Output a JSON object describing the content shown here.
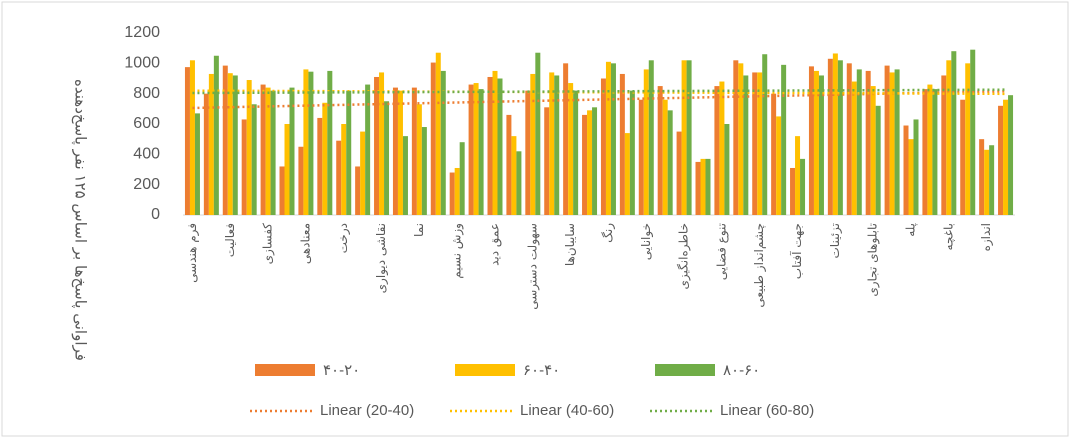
{
  "chart_data": {
    "type": "bar",
    "y_label": "فراوانی پاسخ‌ها بر اساس ۱۲۵ نفر پاسخ‌دهنده",
    "categories": [
      "فرم هندسی",
      null,
      "فعالیت",
      null,
      "کفسازی",
      null,
      "معنادهی",
      null,
      "درخت",
      null,
      "نقاشی دیواری",
      null,
      "نما",
      null,
      "وزش نسیم",
      null,
      "عمق دید",
      null,
      "سهولت دسترسی",
      null,
      "سایبان‌ها",
      null,
      "رنگ",
      null,
      "خوانایی",
      null,
      "خاطره‌انگیزی",
      null,
      "تنوع فضایی",
      null,
      "چشم‌انداز طبیعی",
      null,
      "جهت آفتاب",
      null,
      "تزئینات",
      null,
      "تابلوهای تجاری",
      null,
      "پله",
      null,
      "باغچه",
      null,
      "اندازه",
      null
    ],
    "series": [
      {
        "name": "۴۰-۲۰",
        "color": "#ED7D31",
        "trend_name": "Linear (20-40)",
        "values": [
          975,
          800,
          985,
          630,
          860,
          320,
          450,
          640,
          490,
          320,
          910,
          840,
          840,
          1005,
          280,
          860,
          910,
          660,
          820,
          710,
          1000,
          660,
          900,
          930,
          760,
          850,
          550,
          350,
          850,
          1020,
          940,
          800,
          310,
          980,
          1030,
          1000,
          950,
          985,
          590,
          830,
          920,
          760,
          500,
          720
        ]
      },
      {
        "name": "۶۰-۴۰",
        "color": "#FFC000",
        "trend_name": "Linear (40-60)",
        "values": [
          1020,
          930,
          935,
          890,
          840,
          600,
          960,
          740,
          600,
          550,
          940,
          820,
          730,
          1070,
          310,
          870,
          950,
          520,
          930,
          940,
          870,
          690,
          1010,
          540,
          960,
          760,
          1020,
          370,
          880,
          1000,
          940,
          650,
          520,
          950,
          1065,
          880,
          850,
          940,
          500,
          860,
          1020,
          1000,
          430,
          760
        ]
      },
      {
        "name": "۸۰-۶۰",
        "color": "#70AD47",
        "trend_name": "Linear (60-80)",
        "values": [
          670,
          1050,
          920,
          730,
          820,
          840,
          945,
          950,
          820,
          860,
          750,
          520,
          580,
          950,
          480,
          830,
          900,
          420,
          1070,
          920,
          820,
          710,
          1000,
          820,
          1020,
          690,
          1020,
          370,
          600,
          920,
          1060,
          990,
          370,
          920,
          1020,
          960,
          720,
          960,
          630,
          830,
          1080,
          1090,
          460,
          790
        ]
      }
    ],
    "ylim": [
      0,
      1200
    ],
    "yticks": [
      0,
      200,
      400,
      600,
      800,
      1000,
      1200
    ]
  }
}
